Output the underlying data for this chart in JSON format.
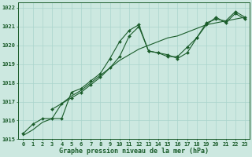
{
  "line1_x": [
    0,
    1,
    2,
    3,
    4,
    5,
    6,
    7,
    8,
    9,
    10,
    11,
    12,
    13,
    14,
    15,
    16,
    17,
    18,
    19,
    20,
    21,
    22,
    23
  ],
  "line1_y": [
    1015.3,
    1015.8,
    1016.1,
    1016.1,
    1016.1,
    1017.5,
    1017.7,
    1018.1,
    1018.5,
    1019.3,
    1020.2,
    1020.8,
    1021.1,
    1019.7,
    1019.6,
    1019.5,
    1019.3,
    1019.6,
    1020.4,
    1021.2,
    1021.4,
    1021.3,
    1021.8,
    1021.5
  ],
  "line2_x": [
    0,
    1,
    2,
    3,
    4,
    5,
    6,
    7,
    8,
    9,
    10,
    11,
    12,
    13,
    14,
    15,
    16,
    17,
    18,
    19,
    20,
    21,
    22,
    23
  ],
  "line2_y": [
    1015.2,
    1015.5,
    1015.9,
    1016.1,
    1016.9,
    1017.3,
    1017.6,
    1018.0,
    1018.4,
    1018.8,
    1019.2,
    1019.5,
    1019.8,
    1020.0,
    1020.2,
    1020.4,
    1020.5,
    1020.7,
    1020.9,
    1021.1,
    1021.2,
    1021.3,
    1021.4,
    1021.5
  ],
  "line3_x": [
    3,
    4,
    5,
    6,
    7,
    8,
    9,
    10,
    11,
    12,
    13,
    14,
    15,
    16,
    17,
    18,
    19,
    20,
    21,
    22,
    23
  ],
  "line3_y": [
    1016.6,
    1016.9,
    1017.2,
    1017.5,
    1017.9,
    1018.3,
    1018.8,
    1019.4,
    1020.5,
    1021.0,
    1019.7,
    1019.6,
    1019.4,
    1019.4,
    1019.9,
    1020.4,
    1021.1,
    1021.5,
    1021.2,
    1021.7,
    1021.4
  ],
  "bg_color": "#cce8e0",
  "line_color": "#1a5c2a",
  "marker": "D",
  "marker_size": 2.0,
  "xlabel": "Graphe pression niveau de la mer (hPa)",
  "xlim": [
    -0.5,
    23.5
  ],
  "ylim": [
    1015,
    1022.3
  ],
  "yticks": [
    1015,
    1016,
    1017,
    1018,
    1019,
    1020,
    1021,
    1022
  ],
  "xticks": [
    0,
    1,
    2,
    3,
    4,
    5,
    6,
    7,
    8,
    9,
    10,
    11,
    12,
    13,
    14,
    15,
    16,
    17,
    18,
    19,
    20,
    21,
    22,
    23
  ],
  "grid_color": "#aad4cc",
  "axes_color": "#1a5c2a",
  "tick_font_size": 5.0,
  "xlabel_font_size": 6.0
}
